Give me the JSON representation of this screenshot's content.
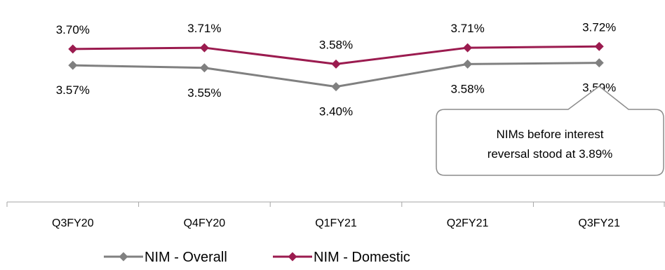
{
  "chart_data": {
    "type": "line",
    "categories": [
      "Q3FY20",
      "Q4FY20",
      "Q1FY21",
      "Q2FY21",
      "Q3FY21"
    ],
    "series": [
      {
        "name": "NIM - Overall",
        "values": [
          3.57,
          3.55,
          3.4,
          3.58,
          3.59
        ],
        "labels": [
          "3.57%",
          "3.55%",
          "3.40%",
          "3.58%",
          "3.59%"
        ],
        "color": "#808080",
        "label_position": "below"
      },
      {
        "name": "NIM - Domestic",
        "values": [
          3.7,
          3.71,
          3.58,
          3.71,
          3.72
        ],
        "labels": [
          "3.70%",
          "3.71%",
          "3.58%",
          "3.71%",
          "3.72%"
        ],
        "color": "#9B1B4F",
        "label_position": "above"
      }
    ],
    "ylim": [
      2.5,
      3.9
    ],
    "grid": false,
    "legend": "bottom",
    "annotation": {
      "lines": [
        "NIMs before interest",
        "reversal stood at 3.89%"
      ],
      "points_to": "Q3FY21"
    }
  }
}
